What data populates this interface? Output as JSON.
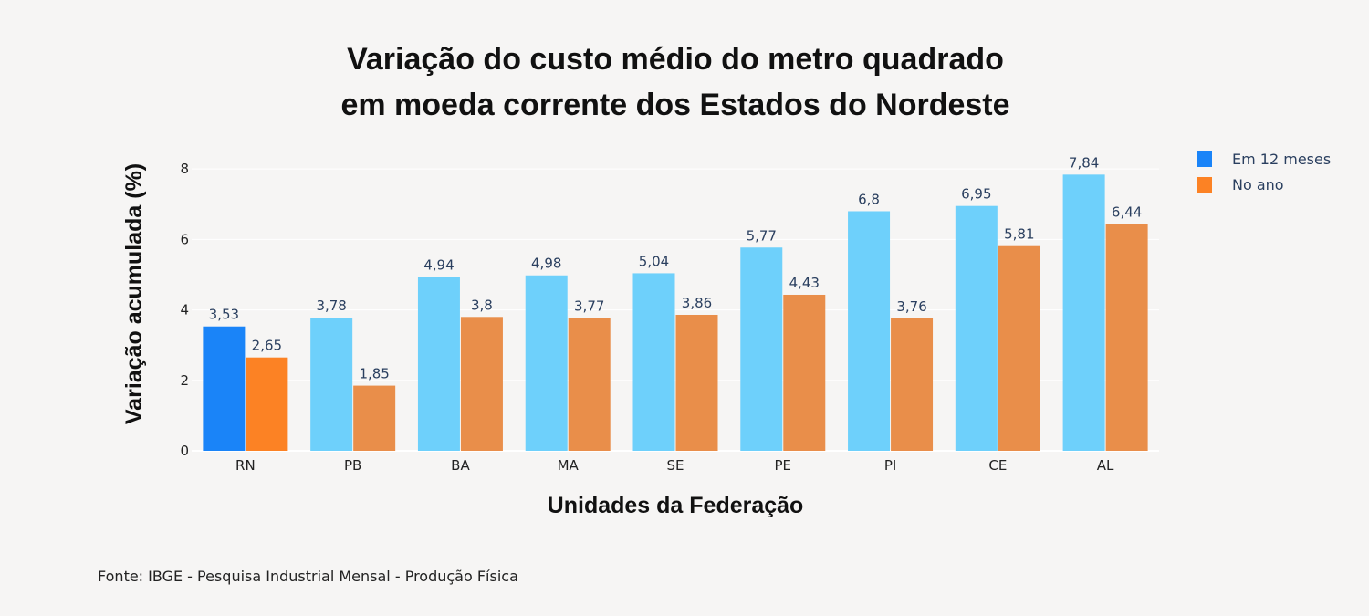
{
  "chart_data": {
    "type": "bar",
    "title": [
      "Variação do custo médio do metro quadrado",
      "em moeda corrente dos Estados do Nordeste"
    ],
    "xlabel": "Unidades da Federação",
    "ylabel": "Variação acumulada (%)",
    "categories": [
      "RN",
      "PB",
      "BA",
      "MA",
      "SE",
      "PE",
      "PI",
      "CE",
      "AL"
    ],
    "series": [
      {
        "name": "Em 12 meses",
        "values": [
          3.53,
          3.78,
          4.94,
          4.98,
          5.04,
          5.77,
          6.8,
          6.95,
          7.84
        ],
        "labels": [
          "3,53",
          "3,78",
          "4,94",
          "4,98",
          "5,04",
          "5,77",
          "6,8",
          "6,95",
          "7,84"
        ],
        "color": "#6ed0fb",
        "highlight_color": "#1a84f8"
      },
      {
        "name": "No ano",
        "values": [
          2.65,
          1.85,
          3.8,
          3.77,
          3.86,
          4.43,
          3.76,
          5.81,
          6.44
        ],
        "labels": [
          "2,65",
          "1,85",
          "3,8",
          "3,77",
          "3,86",
          "4,43",
          "3,76",
          "5,81",
          "6,44"
        ],
        "color": "#e98e4a",
        "highlight_color": "#fc8224"
      }
    ],
    "highlighted_category": "RN",
    "ylim": [
      0,
      8.6
    ],
    "yticks": [
      0,
      2,
      4,
      6,
      8
    ],
    "grid": true,
    "legend_position": "top-right"
  },
  "source": "Fonte: IBGE - Pesquisa Industrial Mensal - Produção Física"
}
